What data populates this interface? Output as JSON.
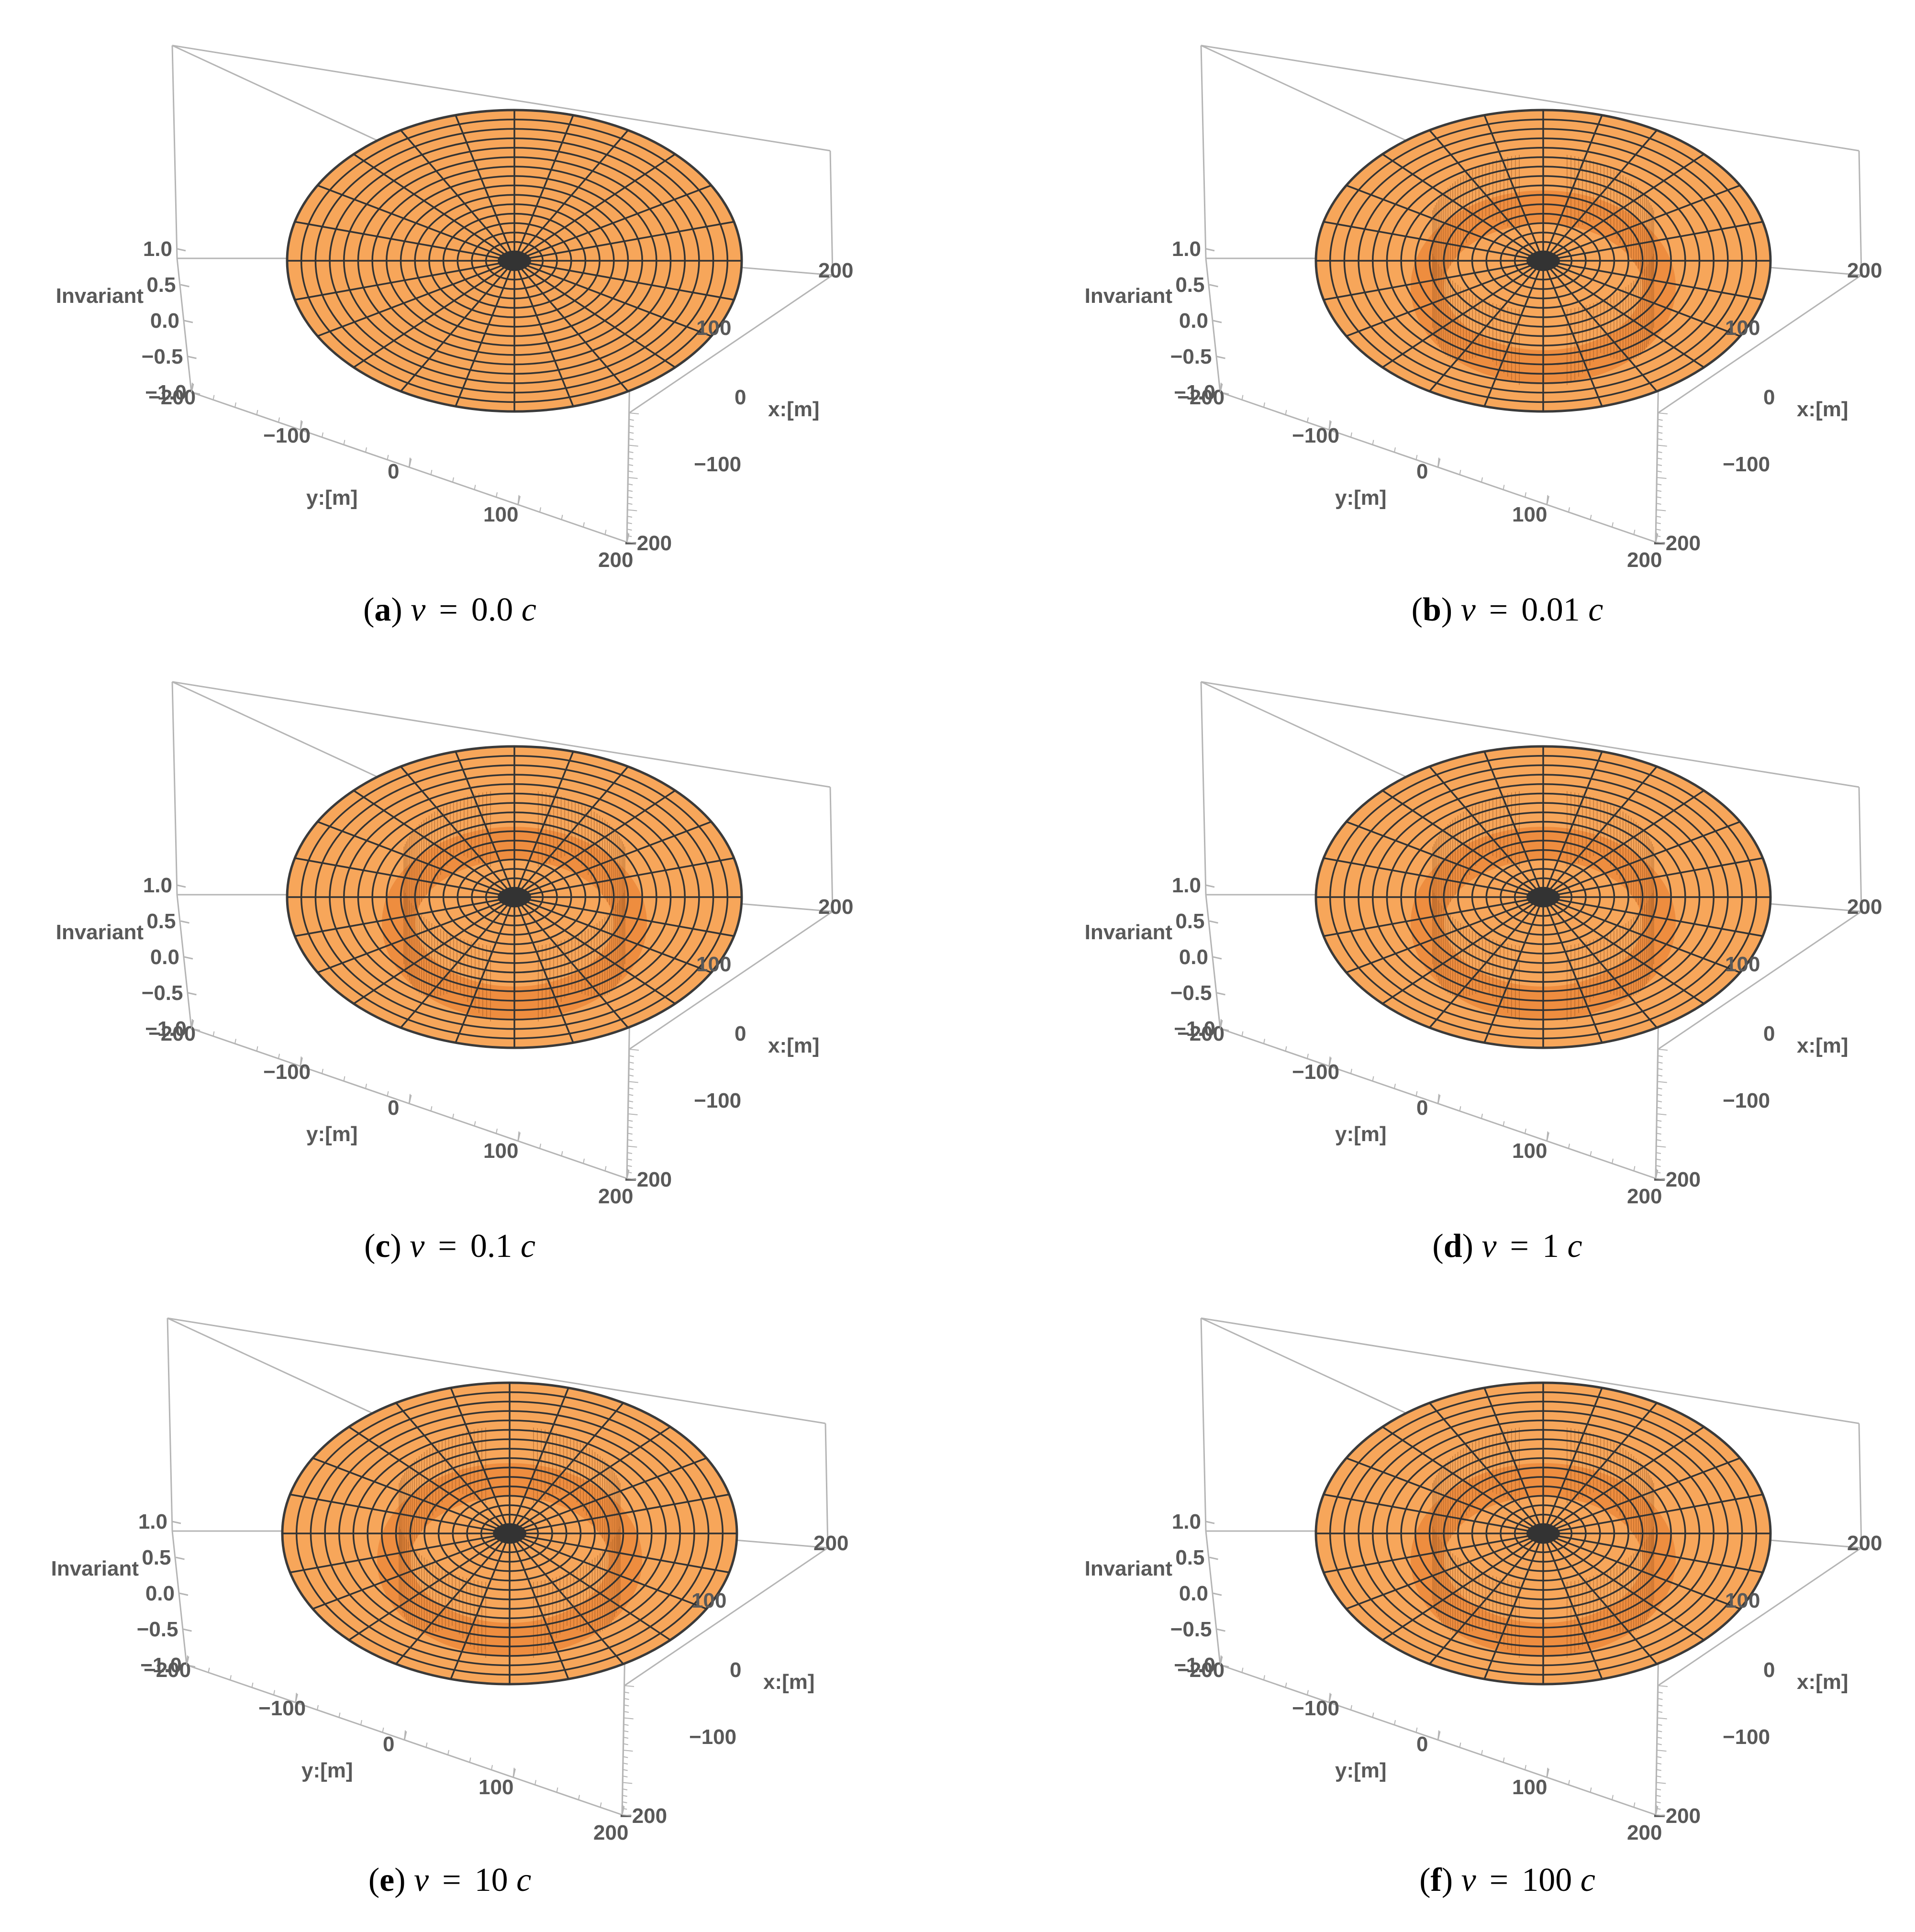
{
  "chart_data": [
    {
      "type": "surface3d",
      "panel": "a",
      "caption": {
        "letter": "a",
        "var": "v",
        "eq": "=",
        "value": "0.0",
        "unit": "c"
      },
      "velocity_c": 0.0,
      "has_ring_discontinuity": false,
      "zlabel": "Invariant",
      "xlabel": "x:[m]",
      "ylabel": "y:[m]",
      "x_ticks": [
        "−200",
        "−100",
        "0",
        "100",
        "200"
      ],
      "y_ticks": [
        "−200",
        "−100",
        "0",
        "100",
        "200"
      ],
      "z_ticks": [
        "−1.0",
        "−0.5",
        "0.0",
        "0.5",
        "1.0"
      ],
      "xlim": [
        -200,
        200
      ],
      "ylim": [
        -200,
        200
      ],
      "zlim": [
        -1,
        1
      ],
      "surface_color": "#f7a65a"
    },
    {
      "type": "surface3d",
      "panel": "b",
      "caption": {
        "letter": "b",
        "var": "v",
        "eq": "=",
        "value": "0.01",
        "unit": "c"
      },
      "velocity_c": 0.01,
      "has_ring_discontinuity": true,
      "zlabel": "Invariant",
      "xlabel": "x:[m]",
      "ylabel": "y:[m]",
      "x_ticks": [
        "−200",
        "−100",
        "0",
        "100",
        "200"
      ],
      "y_ticks": [
        "−200",
        "−100",
        "0",
        "100",
        "200"
      ],
      "z_ticks": [
        "−1.0",
        "−0.5",
        "0.0",
        "0.5",
        "1.0"
      ],
      "xlim": [
        -200,
        200
      ],
      "ylim": [
        -200,
        200
      ],
      "zlim": [
        -1,
        1
      ],
      "surface_color": "#f7a65a"
    },
    {
      "type": "surface3d",
      "panel": "c",
      "caption": {
        "letter": "c",
        "var": "v",
        "eq": "=",
        "value": "0.1",
        "unit": "c"
      },
      "velocity_c": 0.1,
      "has_ring_discontinuity": true,
      "zlabel": "Invariant",
      "xlabel": "x:[m]",
      "ylabel": "y:[m]",
      "x_ticks": [
        "−200",
        "−100",
        "0",
        "100",
        "200"
      ],
      "y_ticks": [
        "−200",
        "−100",
        "0",
        "100",
        "200"
      ],
      "z_ticks": [
        "−1.0",
        "−0.5",
        "0.0",
        "0.5",
        "1.0"
      ],
      "xlim": [
        -200,
        200
      ],
      "ylim": [
        -200,
        200
      ],
      "zlim": [
        -1,
        1
      ],
      "surface_color": "#f7a65a"
    },
    {
      "type": "surface3d",
      "panel": "d",
      "caption": {
        "letter": "d",
        "var": "v",
        "eq": "=",
        "value": "1",
        "unit": "c"
      },
      "velocity_c": 1,
      "has_ring_discontinuity": true,
      "zlabel": "Invariant",
      "xlabel": "x:[m]",
      "ylabel": "y:[m]",
      "x_ticks": [
        "−200",
        "−100",
        "0",
        "100",
        "200"
      ],
      "y_ticks": [
        "−200",
        "−100",
        "0",
        "100",
        "200"
      ],
      "z_ticks": [
        "−1.0",
        "−0.5",
        "0.0",
        "0.5",
        "1.0"
      ],
      "xlim": [
        -200,
        200
      ],
      "ylim": [
        -200,
        200
      ],
      "zlim": [
        -1,
        1
      ],
      "surface_color": "#f7a65a"
    },
    {
      "type": "surface3d",
      "panel": "e",
      "caption": {
        "letter": "e",
        "var": "v",
        "eq": "=",
        "value": "10",
        "unit": "c"
      },
      "velocity_c": 10,
      "has_ring_discontinuity": true,
      "zlabel": "Invariant",
      "xlabel": "x:[m]",
      "ylabel": "y:[m]",
      "x_ticks": [
        "−200",
        "−100",
        "0",
        "100",
        "200"
      ],
      "y_ticks": [
        "−200",
        "−100",
        "0",
        "100",
        "200"
      ],
      "z_ticks": [
        "−1.0",
        "−0.5",
        "0.0",
        "0.5",
        "1.0"
      ],
      "xlim": [
        -200,
        200
      ],
      "ylim": [
        -200,
        200
      ],
      "zlim": [
        -1,
        1
      ],
      "surface_color": "#f7a65a"
    },
    {
      "type": "surface3d",
      "panel": "f",
      "caption": {
        "letter": "f",
        "var": "v",
        "eq": "=",
        "value": "100",
        "unit": "c"
      },
      "velocity_c": 100,
      "has_ring_discontinuity": true,
      "zlabel": "Invariant",
      "xlabel": "x:[m]",
      "ylabel": "y:[m]",
      "x_ticks": [
        "−200",
        "−100",
        "0",
        "100",
        "200"
      ],
      "y_ticks": [
        "−200",
        "−100",
        "0",
        "100",
        "200"
      ],
      "z_ticks": [
        "−1.0",
        "−0.5",
        "0.0",
        "0.5",
        "1.0"
      ],
      "xlim": [
        -200,
        200
      ],
      "ylim": [
        -200,
        200
      ],
      "zlim": [
        -1,
        1
      ],
      "surface_color": "#f7a65a"
    }
  ]
}
